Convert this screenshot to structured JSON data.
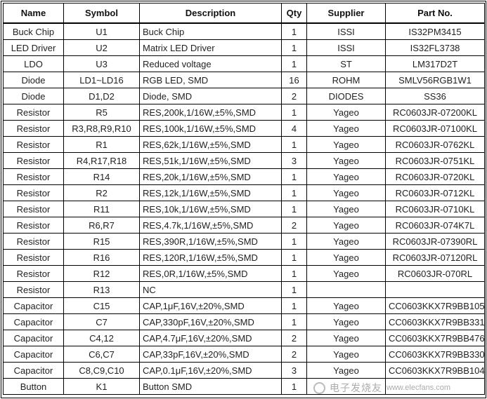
{
  "table": {
    "headers": [
      "Name",
      "Symbol",
      "Description",
      "Qty",
      "Supplier",
      "Part No."
    ],
    "rows": [
      [
        "Buck Chip",
        "U1",
        "Buck Chip",
        "1",
        "ISSI",
        "IS32PM3415"
      ],
      [
        "LED Driver",
        "U2",
        "Matrix LED Driver",
        "1",
        "ISSI",
        "IS32FL3738"
      ],
      [
        "LDO",
        "U3",
        "Reduced voltage",
        "1",
        "ST",
        "LM317D2T"
      ],
      [
        "Diode",
        "LD1~LD16",
        "RGB LED, SMD",
        "16",
        "ROHM",
        "SMLV56RGB1W1"
      ],
      [
        "Diode",
        "D1,D2",
        "Diode, SMD",
        "2",
        "DIODES",
        "SS36"
      ],
      [
        "Resistor",
        "R5",
        "RES,200k,1/16W,±5%,SMD",
        "1",
        "Yageo",
        "RC0603JR-07200KL"
      ],
      [
        "Resistor",
        "R3,R8,R9,R10",
        "RES,100k,1/16W,±5%,SMD",
        "4",
        "Yageo",
        "RC0603JR-07100KL"
      ],
      [
        "Resistor",
        "R1",
        "RES,62k,1/16W,±5%,SMD",
        "1",
        "Yageo",
        "RC0603JR-0762KL"
      ],
      [
        "Resistor",
        "R4,R17,R18",
        "RES,51k,1/16W,±5%,SMD",
        "3",
        "Yageo",
        "RC0603JR-0751KL"
      ],
      [
        "Resistor",
        "R14",
        "RES,20k,1/16W,±5%,SMD",
        "1",
        "Yageo",
        "RC0603JR-0720KL"
      ],
      [
        "Resistor",
        "R2",
        "RES,12k,1/16W,±5%,SMD",
        "1",
        "Yageo",
        "RC0603JR-0712KL"
      ],
      [
        "Resistor",
        "R11",
        "RES,10k,1/16W,±5%,SMD",
        "1",
        "Yageo",
        "RC0603JR-0710KL"
      ],
      [
        "Resistor",
        "R6,R7",
        "RES,4.7k,1/16W,±5%,SMD",
        "2",
        "Yageo",
        "RC0603JR-074K7L"
      ],
      [
        "Resistor",
        "R15",
        "RES,390R,1/16W,±5%,SMD",
        "1",
        "Yageo",
        "RC0603JR-07390RL"
      ],
      [
        "Resistor",
        "R16",
        "RES,120R,1/16W,±5%,SMD",
        "1",
        "Yageo",
        "RC0603JR-07120RL"
      ],
      [
        "Resistor",
        "R12",
        "RES,0R,1/16W,±5%,SMD",
        "1",
        "Yageo",
        "RC0603JR-070RL"
      ],
      [
        "Resistor",
        "R13",
        "NC",
        "1",
        "",
        ""
      ],
      [
        "Capacitor",
        "C15",
        "CAP,1μF,16V,±20%,SMD",
        "1",
        "Yageo",
        "CC0603KKX7R9BB105"
      ],
      [
        "Capacitor",
        "C7",
        "CAP,330pF,16V,±20%,SMD",
        "1",
        "Yageo",
        "CC0603KKX7R9BB331"
      ],
      [
        "Capacitor",
        "C4,12",
        "CAP,4.7μF,16V,±20%,SMD",
        "2",
        "Yageo",
        "CC0603KKX7R9BB476"
      ],
      [
        "Capacitor",
        "C6,C7",
        "CAP,33pF,16V,±20%,SMD",
        "2",
        "Yageo",
        "CC0603KKX7R9BB330"
      ],
      [
        "Capacitor",
        "C8,C9,C10",
        "CAP,0.1μF,16V,±20%,SMD",
        "3",
        "Yageo",
        "CC0603KKX7R9BB104"
      ],
      [
        "Button",
        "K1",
        "Button SMD",
        "1",
        "",
        ""
      ]
    ]
  },
  "watermark": {
    "text_cn": "电子发烧友",
    "url": "www.elecfans.com"
  }
}
